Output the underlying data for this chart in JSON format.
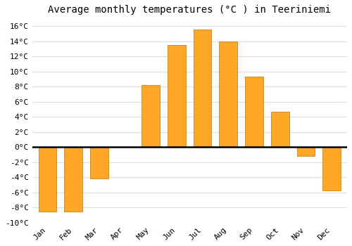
{
  "title": "Average monthly temperatures (°C ) in Teeriniemi",
  "months": [
    "Jan",
    "Feb",
    "Mar",
    "Apr",
    "May",
    "Jun",
    "Jul",
    "Aug",
    "Sep",
    "Oct",
    "Nov",
    "Dec"
  ],
  "values": [
    -8.5,
    -8.5,
    -4.2,
    0,
    8.2,
    13.5,
    15.5,
    14.0,
    9.3,
    4.7,
    -1.2,
    -5.7
  ],
  "bar_color": "#FFA726",
  "bar_edge_color": "#C8851A",
  "background_color": "#ffffff",
  "plot_bg_color": "#ffffff",
  "ylim": [
    -10,
    17
  ],
  "ytick_min": -10,
  "ytick_max": 16,
  "ytick_step": 2,
  "grid_color": "#dddddd",
  "zero_line_color": "#000000",
  "title_fontsize": 10,
  "tick_fontsize": 8,
  "bar_width": 0.7
}
